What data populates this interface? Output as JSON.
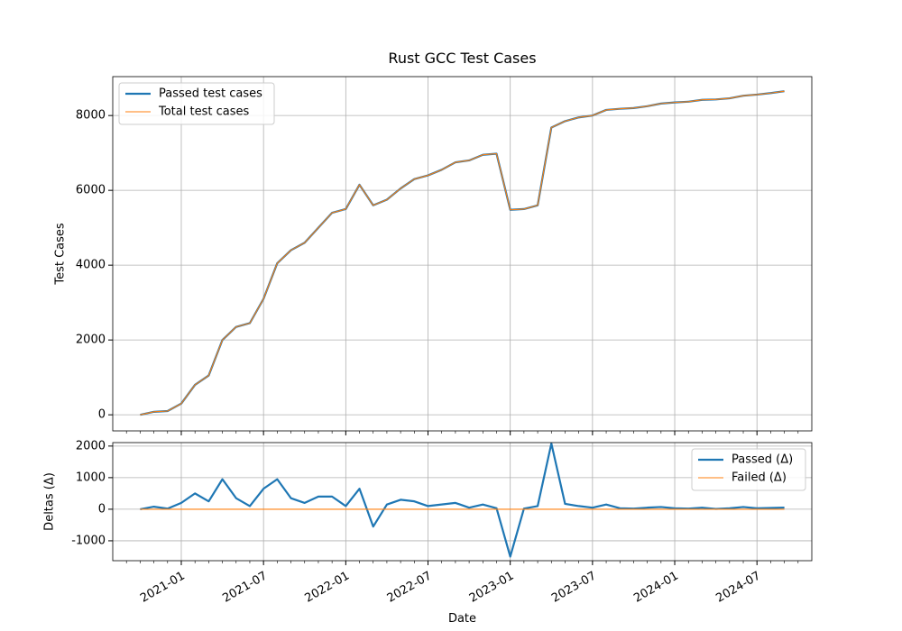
{
  "chart_data": [
    {
      "type": "line",
      "title": "Rust GCC Test Cases",
      "y_label": "Test Cases",
      "x": [
        "2020-10",
        "2020-11",
        "2020-12",
        "2021-01",
        "2021-02",
        "2021-03",
        "2021-04",
        "2021-05",
        "2021-06",
        "2021-07",
        "2021-08",
        "2021-09",
        "2021-10",
        "2021-11",
        "2021-12",
        "2022-01",
        "2022-02",
        "2022-03",
        "2022-04",
        "2022-05",
        "2022-06",
        "2022-07",
        "2022-08",
        "2022-09",
        "2022-10",
        "2022-11",
        "2022-12",
        "2023-01",
        "2023-02",
        "2023-03",
        "2023-04",
        "2023-05",
        "2023-06",
        "2023-07",
        "2023-08",
        "2023-09",
        "2023-10",
        "2023-11",
        "2023-12",
        "2024-01",
        "2024-02",
        "2024-03",
        "2024-04",
        "2024-05",
        "2024-06",
        "2024-07",
        "2024-08",
        "2024-09"
      ],
      "series": [
        {
          "name": "Passed test cases",
          "color": "#1f77b4",
          "values": [
            0,
            80,
            100,
            300,
            800,
            1050,
            2000,
            2350,
            2450,
            3100,
            4050,
            4400,
            4600,
            5000,
            5400,
            5500,
            6150,
            5600,
            5750,
            6050,
            6300,
            6400,
            6550,
            6750,
            6800,
            6950,
            6980,
            5480,
            5500,
            5600,
            7680,
            7850,
            7950,
            8000,
            8150,
            8180,
            8200,
            8250,
            8320,
            8350,
            8370,
            8420,
            8430,
            8460,
            8530,
            8560,
            8600,
            8650
          ]
        },
        {
          "name": "Total test cases",
          "color": "#ff7f0e",
          "values": [
            0,
            80,
            100,
            300,
            800,
            1050,
            2000,
            2350,
            2450,
            3100,
            4050,
            4400,
            4600,
            5000,
            5400,
            5500,
            6150,
            5600,
            5750,
            6050,
            6300,
            6400,
            6550,
            6750,
            6800,
            6950,
            6980,
            5480,
            5500,
            5600,
            7680,
            7850,
            7950,
            8000,
            8150,
            8180,
            8200,
            8250,
            8320,
            8350,
            8370,
            8420,
            8430,
            8460,
            8530,
            8560,
            8600,
            8650
          ]
        }
      ],
      "xlim": [
        "2020-08",
        "2024-11"
      ],
      "xticks": [
        "2021-01",
        "2021-07",
        "2022-01",
        "2022-07",
        "2023-01",
        "2023-07",
        "2024-01",
        "2024-07"
      ],
      "ylim": [
        -430,
        9040
      ],
      "yticks": [
        0,
        2000,
        4000,
        6000,
        8000
      ],
      "grid": true,
      "legend": "upper-left"
    },
    {
      "type": "line",
      "y_label": "Deltas (Δ)",
      "x_label": "Date",
      "x": [
        "2020-10",
        "2020-11",
        "2020-12",
        "2021-01",
        "2021-02",
        "2021-03",
        "2021-04",
        "2021-05",
        "2021-06",
        "2021-07",
        "2021-08",
        "2021-09",
        "2021-10",
        "2021-11",
        "2021-12",
        "2022-01",
        "2022-02",
        "2022-03",
        "2022-04",
        "2022-05",
        "2022-06",
        "2022-07",
        "2022-08",
        "2022-09",
        "2022-10",
        "2022-11",
        "2022-12",
        "2023-01",
        "2023-02",
        "2023-03",
        "2023-04",
        "2023-05",
        "2023-06",
        "2023-07",
        "2023-08",
        "2023-09",
        "2023-10",
        "2023-11",
        "2023-12",
        "2024-01",
        "2024-02",
        "2024-03",
        "2024-04",
        "2024-05",
        "2024-06",
        "2024-07",
        "2024-08",
        "2024-09"
      ],
      "series": [
        {
          "name": "Passed (Δ)",
          "color": "#1f77b4",
          "values": [
            0,
            80,
            20,
            200,
            500,
            250,
            950,
            350,
            100,
            650,
            950,
            350,
            200,
            400,
            400,
            100,
            650,
            -550,
            150,
            300,
            250,
            100,
            150,
            200,
            50,
            150,
            30,
            -1500,
            20,
            100,
            2080,
            170,
            100,
            50,
            150,
            30,
            20,
            50,
            70,
            30,
            20,
            50,
            10,
            30,
            70,
            30,
            40,
            50
          ]
        },
        {
          "name": "Failed (Δ)",
          "color": "#ff7f0e",
          "values": [
            0,
            0,
            0,
            0,
            0,
            0,
            0,
            0,
            0,
            0,
            0,
            0,
            0,
            0,
            0,
            0,
            0,
            0,
            0,
            0,
            0,
            0,
            0,
            0,
            0,
            0,
            0,
            0,
            0,
            0,
            0,
            0,
            0,
            0,
            0,
            0,
            0,
            0,
            0,
            0,
            0,
            0,
            0,
            0,
            0,
            0,
            0,
            0
          ]
        }
      ],
      "xlim": [
        "2020-08",
        "2024-11"
      ],
      "xticks": [
        "2021-01",
        "2021-07",
        "2022-01",
        "2022-07",
        "2023-01",
        "2023-07",
        "2024-01",
        "2024-07"
      ],
      "ylim": [
        -1630,
        2110
      ],
      "yticks": [
        -1000,
        0,
        1000,
        2000
      ],
      "grid": true,
      "legend": "upper-right"
    }
  ]
}
